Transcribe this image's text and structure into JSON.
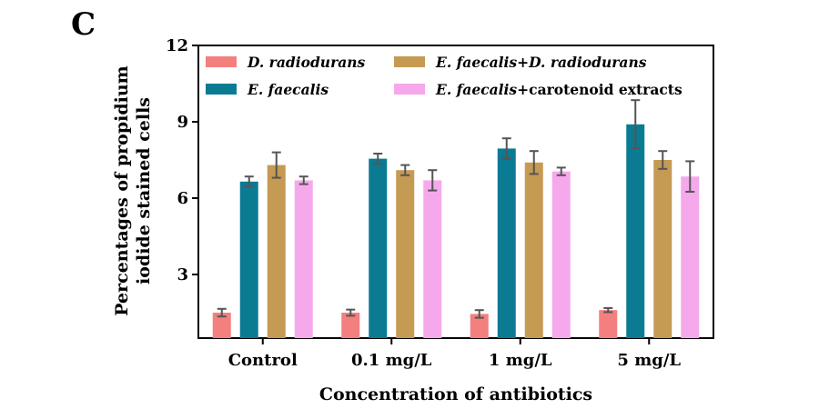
{
  "panel_label": "C",
  "chart_data": {
    "type": "bar",
    "xlabel": "Concentration of antibiotics",
    "ylabel_line1": "Percentages of propidium",
    "ylabel_line2": "iodide stained cells",
    "categories": [
      "Control",
      "0.1 mg/L",
      "1 mg/L",
      "5 mg/L"
    ],
    "yticks": [
      "3",
      "6",
      "9",
      "12"
    ],
    "ylim": [
      0.5,
      12
    ],
    "series": [
      {
        "name": "D. radiodurans",
        "legend_parts": [
          {
            "text": "D. radiodurans",
            "italic": true
          }
        ],
        "color": "#f47f7f",
        "values": [
          1.5,
          1.5,
          1.45,
          1.6
        ],
        "errors": [
          0.15,
          0.12,
          0.15,
          0.08
        ]
      },
      {
        "name": "E. faecalis",
        "legend_parts": [
          {
            "text": "E. faecalis",
            "italic": true
          }
        ],
        "color": "#0b7b94",
        "values": [
          6.65,
          7.55,
          7.95,
          8.9
        ],
        "errors": [
          0.2,
          0.2,
          0.4,
          0.95
        ]
      },
      {
        "name": "E. faecalis+D. radiodurans",
        "legend_parts": [
          {
            "text": "E. faecalis",
            "italic": true
          },
          {
            "text": "+",
            "italic": false
          },
          {
            "text": "D. radiodurans",
            "italic": true
          }
        ],
        "color": "#c59a53",
        "values": [
          7.3,
          7.1,
          7.4,
          7.5
        ],
        "errors": [
          0.5,
          0.2,
          0.45,
          0.35
        ]
      },
      {
        "name": "E. faecalis+carotenoid extracts",
        "legend_parts": [
          {
            "text": "E. faecalis",
            "italic": true
          },
          {
            "text": "+carotenoid extracts",
            "italic": false
          }
        ],
        "color": "#f5a9ec",
        "values": [
          6.7,
          6.7,
          7.05,
          6.85
        ],
        "errors": [
          0.15,
          0.4,
          0.15,
          0.6
        ]
      }
    ],
    "legend_position": "top",
    "grid": false
  }
}
